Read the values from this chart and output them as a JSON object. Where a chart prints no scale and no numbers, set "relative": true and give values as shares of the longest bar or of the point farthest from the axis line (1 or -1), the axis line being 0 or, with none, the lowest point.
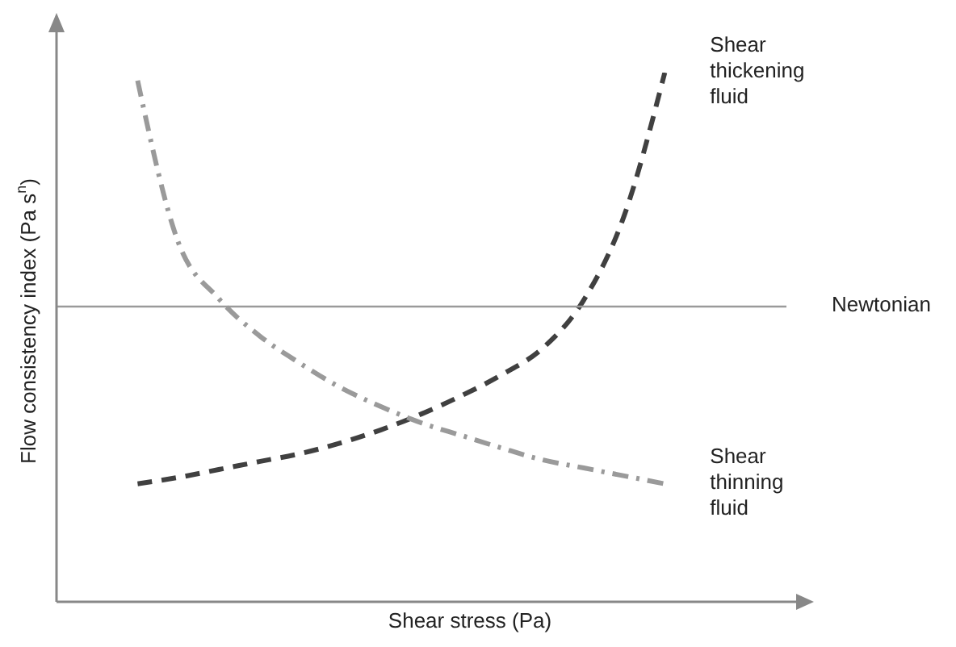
{
  "chart_data": {
    "type": "line",
    "relative": true,
    "xlabel": "Shear stress (Pa)",
    "ylabel": "Flow consistency index (Pa s$^{n}$)",
    "marker": "none",
    "categories": [
      null,
      null,
      null,
      null,
      null,
      null,
      null,
      null,
      null,
      null,
      null,
      null,
      null,
      null,
      null,
      null,
      null,
      null,
      null
    ],
    "series": [
      {
        "name": "Shear thickening fluid",
        "color": "#404040",
        "line_style": "dashed",
        "values": [
          null,
          null,
          0.223,
          0.235,
          0.25,
          0.265,
          0.28,
          0.3,
          0.325,
          0.355,
          0.39,
          0.43,
          0.48,
          0.57,
          0.73,
          1.0,
          null,
          null,
          null
        ]
      },
      {
        "name": "Newtonian",
        "color": "#9a9a9a",
        "line_style": "solid",
        "values": [
          0.558,
          0.558,
          0.558,
          0.558,
          0.558,
          0.558,
          0.558,
          0.558,
          0.558,
          0.558,
          0.558,
          0.558,
          0.558,
          0.558,
          0.558,
          0.558,
          0.558,
          0.558,
          0.558
        ]
      },
      {
        "name": "Shear thinning fluid",
        "color": "#9a9a9a",
        "line_style": "dashdot",
        "values": [
          null,
          null,
          0.985,
          0.68,
          0.573,
          0.503,
          0.451,
          0.405,
          0.369,
          0.338,
          0.314,
          0.29,
          0.268,
          0.253,
          0.238,
          0.223,
          null,
          null,
          null
        ]
      }
    ]
  }
}
